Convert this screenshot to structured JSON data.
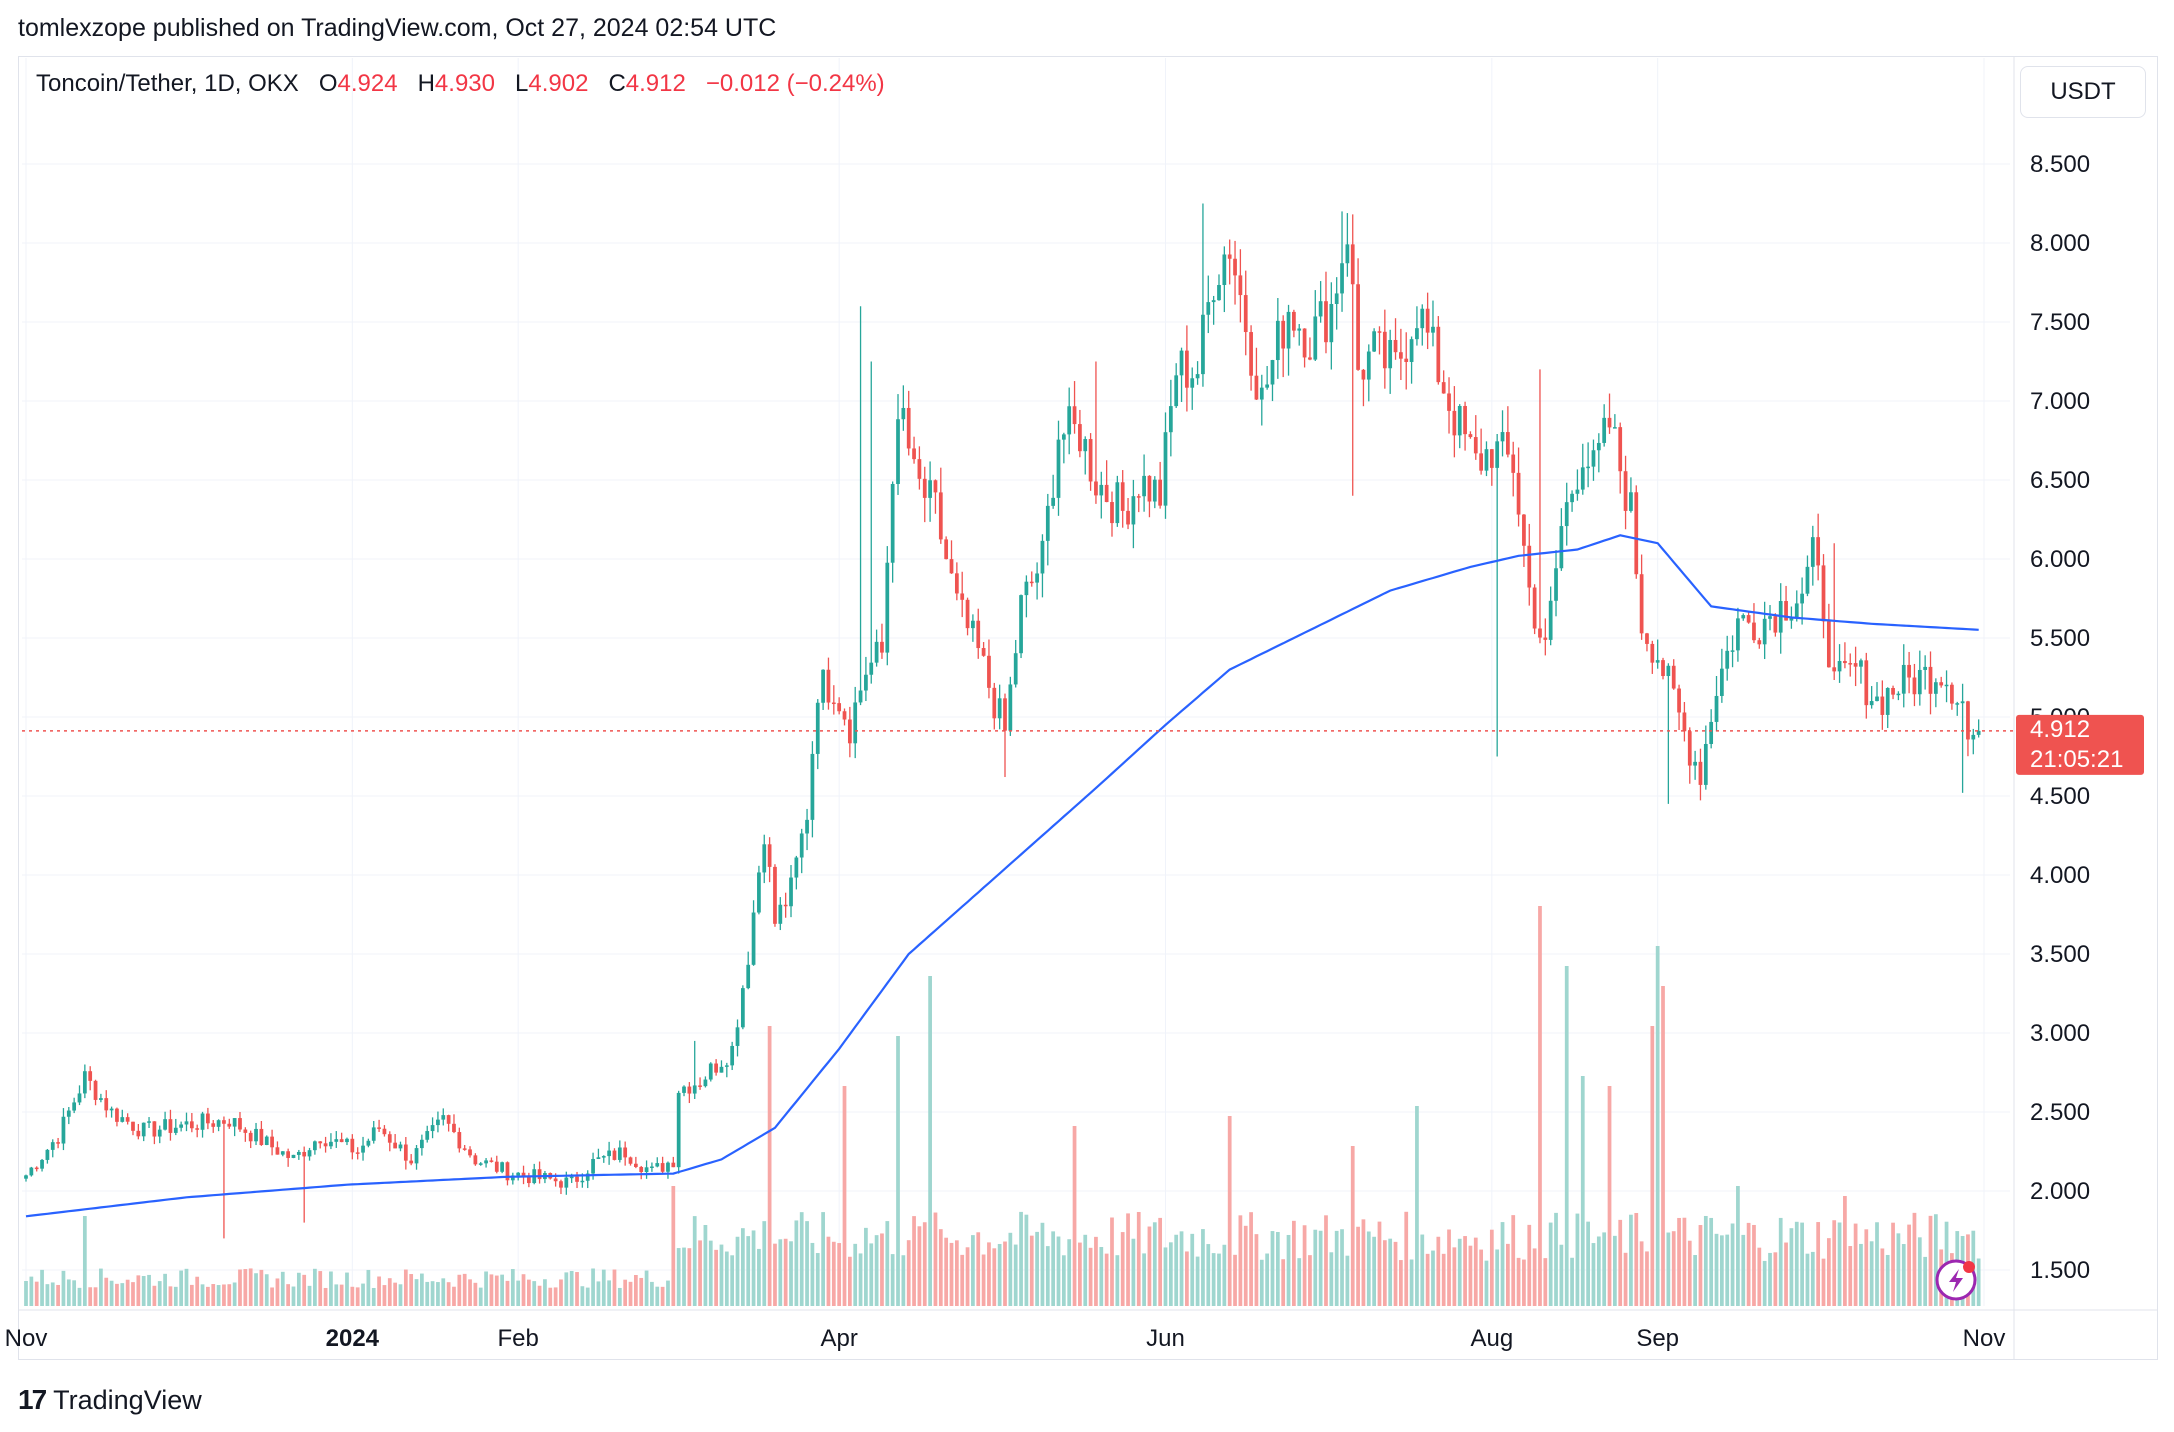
{
  "header": {
    "text": "tomlexzope published on TradingView.com, Oct 27, 2024 02:54 UTC"
  },
  "legend": {
    "symbol": "Toncoin/Tether, 1D, OKX",
    "open_label": "O",
    "open": "4.924",
    "high_label": "H",
    "high": "4.930",
    "low_label": "L",
    "low": "4.902",
    "close_label": "C",
    "close": "4.912",
    "change": "−0.012 (−0.24%)"
  },
  "currency_button": {
    "label": "USDT"
  },
  "price_tag": {
    "price": "4.912",
    "countdown": "21:05:21"
  },
  "footer": {
    "logo_text": "TradingView",
    "logo_mark": "17"
  },
  "colors": {
    "up": "#26a69a",
    "down": "#ef5350",
    "ma": "#2962ff",
    "up_vol": "#9fd6cf",
    "down_vol": "#f7a8a6"
  },
  "chart_data": {
    "type": "candlestick",
    "symbol": "Toncoin/Tether",
    "interval": "1D",
    "exchange": "OKX",
    "y_ticks": [
      1.5,
      2.0,
      2.5,
      3.0,
      3.5,
      4.0,
      4.5,
      5.0,
      5.5,
      6.0,
      6.5,
      7.0,
      7.5,
      8.0,
      8.5
    ],
    "y_tick_labels": [
      "1.500",
      "2.000",
      "2.500",
      "3.000",
      "3.500",
      "4.000",
      "4.500",
      "5.000",
      "5.500",
      "6.000",
      "6.500",
      "7.000",
      "7.500",
      "8.000",
      "8.500"
    ],
    "x_tick_labels": [
      {
        "label": "Nov",
        "idx": 0
      },
      {
        "label": "2024",
        "idx": 61
      },
      {
        "label": "Feb",
        "idx": 92
      },
      {
        "label": "Apr",
        "idx": 152
      },
      {
        "label": "Jun",
        "idx": 213
      },
      {
        "label": "Aug",
        "idx": 274
      },
      {
        "label": "Sep",
        "idx": 305
      },
      {
        "label": "Nov",
        "idx": 366
      }
    ],
    "close_anchors": [
      [
        0,
        2.1
      ],
      [
        6,
        2.35
      ],
      [
        11,
        2.72
      ],
      [
        16,
        2.5
      ],
      [
        22,
        2.38
      ],
      [
        30,
        2.42
      ],
      [
        38,
        2.45
      ],
      [
        45,
        2.3
      ],
      [
        50,
        2.2
      ],
      [
        55,
        2.35
      ],
      [
        62,
        2.25
      ],
      [
        66,
        2.4
      ],
      [
        72,
        2.2
      ],
      [
        78,
        2.45
      ],
      [
        84,
        2.2
      ],
      [
        90,
        2.12
      ],
      [
        96,
        2.08
      ],
      [
        102,
        2.05
      ],
      [
        106,
        2.18
      ],
      [
        112,
        2.25
      ],
      [
        117,
        2.12
      ],
      [
        121,
        2.2
      ],
      [
        122,
        2.65
      ],
      [
        126,
        2.7
      ],
      [
        132,
        2.9
      ],
      [
        135,
        3.5
      ],
      [
        138,
        4.3
      ],
      [
        140,
        3.7
      ],
      [
        143,
        3.9
      ],
      [
        146,
        4.4
      ],
      [
        148,
        5.2
      ],
      [
        151,
        5.2
      ],
      [
        154,
        4.95
      ],
      [
        157,
        5.3
      ],
      [
        160,
        5.4
      ],
      [
        162,
        6.6
      ],
      [
        164,
        6.9
      ],
      [
        166,
        6.5
      ],
      [
        170,
        6.3
      ],
      [
        174,
        5.7
      ],
      [
        178,
        5.4
      ],
      [
        183,
        4.9
      ],
      [
        186,
        5.7
      ],
      [
        190,
        6.0
      ],
      [
        193,
        6.8
      ],
      [
        197,
        6.8
      ],
      [
        200,
        6.5
      ],
      [
        205,
        6.3
      ],
      [
        208,
        6.5
      ],
      [
        212,
        6.4
      ],
      [
        215,
        7.2
      ],
      [
        219,
        7.2
      ],
      [
        222,
        7.8
      ],
      [
        225,
        8.0
      ],
      [
        228,
        7.5
      ],
      [
        231,
        7.0
      ],
      [
        236,
        7.6
      ],
      [
        240,
        7.4
      ],
      [
        244,
        7.6
      ],
      [
        247,
        8.1
      ],
      [
        249,
        7.2
      ],
      [
        252,
        7.3
      ],
      [
        256,
        7.2
      ],
      [
        260,
        7.6
      ],
      [
        263,
        7.3
      ],
      [
        267,
        6.9
      ],
      [
        271,
        6.6
      ],
      [
        274,
        6.7
      ],
      [
        278,
        6.6
      ],
      [
        281,
        5.8
      ],
      [
        284,
        5.4
      ],
      [
        287,
        6.2
      ],
      [
        291,
        6.7
      ],
      [
        293,
        6.55
      ],
      [
        296,
        6.85
      ],
      [
        300,
        6.3
      ],
      [
        302,
        5.6
      ],
      [
        305,
        5.4
      ],
      [
        308,
        5.1
      ],
      [
        311,
        4.8
      ],
      [
        313,
        4.65
      ],
      [
        316,
        5.2
      ],
      [
        320,
        5.6
      ],
      [
        324,
        5.6
      ],
      [
        328,
        5.7
      ],
      [
        332,
        5.8
      ],
      [
        334,
        6.0
      ],
      [
        336,
        5.7
      ],
      [
        338,
        5.2
      ],
      [
        342,
        5.3
      ],
      [
        346,
        5.1
      ],
      [
        350,
        5.2
      ],
      [
        354,
        5.25
      ],
      [
        358,
        5.3
      ],
      [
        362,
        5.1
      ],
      [
        363,
        4.85
      ],
      [
        365,
        4.91
      ]
    ],
    "ma_anchors": [
      [
        0,
        1.84
      ],
      [
        30,
        1.96
      ],
      [
        60,
        2.04
      ],
      [
        90,
        2.09
      ],
      [
        121,
        2.11
      ],
      [
        130,
        2.2
      ],
      [
        140,
        2.4
      ],
      [
        152,
        2.9
      ],
      [
        165,
        3.5
      ],
      [
        185,
        4.1
      ],
      [
        200,
        4.55
      ],
      [
        213,
        4.95
      ],
      [
        225,
        5.3
      ],
      [
        240,
        5.55
      ],
      [
        255,
        5.8
      ],
      [
        270,
        5.95
      ],
      [
        279,
        6.02
      ],
      [
        290,
        6.06
      ],
      [
        298,
        6.15
      ],
      [
        305,
        6.1
      ],
      [
        315,
        5.7
      ],
      [
        330,
        5.63
      ],
      [
        345,
        5.59
      ],
      [
        366,
        5.55
      ]
    ],
    "notable_wicks": [
      [
        37,
        1.7
      ],
      [
        52,
        1.8
      ],
      [
        125,
        2.95
      ],
      [
        147,
        4.6
      ],
      [
        156,
        7.6
      ],
      [
        158,
        7.25
      ],
      [
        183,
        4.62
      ],
      [
        200,
        7.25
      ],
      [
        220,
        8.25
      ],
      [
        246,
        8.2
      ],
      [
        248,
        6.4
      ],
      [
        275,
        4.75
      ],
      [
        283,
        7.2
      ],
      [
        307,
        4.45
      ],
      [
        338,
        6.1
      ],
      [
        362,
        4.52
      ]
    ],
    "volume_spikes": [
      [
        0.25,
        0
      ],
      [
        0.9,
        11
      ],
      [
        1.2,
        121
      ],
      [
        2.8,
        139
      ],
      [
        2.2,
        153
      ],
      [
        3.3,
        169
      ],
      [
        2.7,
        163
      ],
      [
        1.8,
        196
      ],
      [
        1.9,
        225
      ],
      [
        1.6,
        248
      ],
      [
        2.0,
        260
      ],
      [
        4.0,
        283
      ],
      [
        3.4,
        288
      ],
      [
        2.3,
        291
      ],
      [
        2.2,
        296
      ],
      [
        2.8,
        304
      ],
      [
        3.6,
        305
      ],
      [
        3.2,
        306
      ],
      [
        1.2,
        320
      ],
      [
        1.1,
        340
      ],
      [
        0.7,
        362
      ]
    ],
    "last_price": 4.912,
    "last_bar_index": 365,
    "moving_average_color": "#2962ff"
  }
}
